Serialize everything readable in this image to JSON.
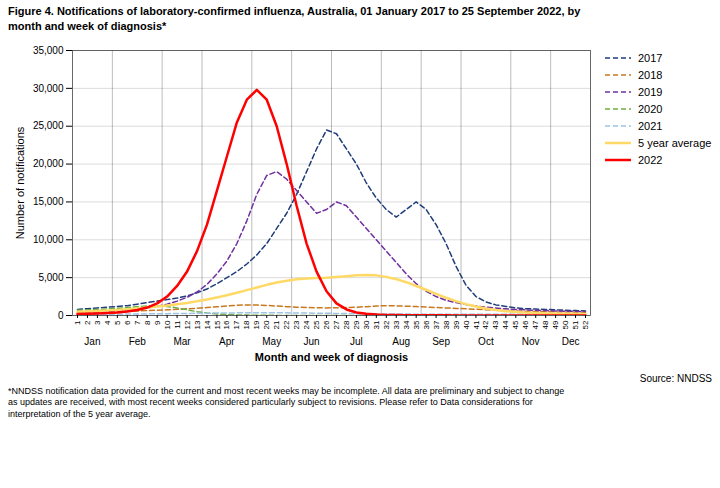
{
  "chart_data": {
    "type": "line",
    "title": "Figure 4. Notifications of laboratory-confirmed influenza, Australia, 01 January 2017 to 25 September 2022, by\nmonth and week of diagnosis*",
    "xlabel": "Month and week of diagnosis",
    "ylabel": "Number of notifications",
    "source": "Source: NNDSS",
    "footnote": "*NNDSS notification data provided for the current and most recent weeks may be incomplete. All data are preliminary and subject to change\nas updates are received, with most recent weeks considered particularly subject to revisions. Please refer to Data considerations for\ninterpretation of the 5 year average.",
    "months": [
      "Jan",
      "Feb",
      "Mar",
      "Apr",
      "May",
      "Jun",
      "Jul",
      "Aug",
      "Sep",
      "Oct",
      "Nov",
      "Dec"
    ],
    "month_week_boundaries": [
      0,
      4,
      9,
      13,
      18,
      22,
      26,
      31,
      35,
      39,
      44,
      48,
      52
    ],
    "x": [
      1,
      2,
      3,
      4,
      5,
      6,
      7,
      8,
      9,
      10,
      11,
      12,
      13,
      14,
      15,
      16,
      17,
      18,
      19,
      20,
      21,
      22,
      23,
      24,
      25,
      26,
      27,
      28,
      29,
      30,
      31,
      32,
      33,
      34,
      35,
      36,
      37,
      38,
      39,
      40,
      41,
      42,
      43,
      44,
      45,
      46,
      47,
      48,
      49,
      50,
      51,
      52
    ],
    "xlim": [
      0.5,
      52.5
    ],
    "xticks": [
      1,
      2,
      3,
      4,
      5,
      6,
      7,
      8,
      9,
      10,
      11,
      12,
      13,
      14,
      15,
      16,
      17,
      18,
      19,
      20,
      21,
      22,
      23,
      24,
      25,
      26,
      27,
      28,
      29,
      30,
      31,
      32,
      33,
      34,
      35,
      36,
      37,
      38,
      39,
      40,
      41,
      42,
      43,
      44,
      45,
      46,
      47,
      48,
      49,
      50,
      51,
      52
    ],
    "ylim": [
      0,
      35000
    ],
    "yticks": [
      0,
      {
        "value": 5000,
        "label": "5,000"
      },
      {
        "value": 10000,
        "label": "10,000"
      },
      {
        "value": 15000,
        "label": "15,000"
      },
      {
        "value": 20000,
        "label": "20,000"
      },
      {
        "value": 25000,
        "label": "25,000"
      },
      {
        "value": 30000,
        "label": "30,000"
      },
      {
        "value": 35000,
        "label": "35,000"
      }
    ],
    "grid": true,
    "legend": "right",
    "series": [
      {
        "name": "2017",
        "color": "#1f3d7a",
        "line_style": "dashed",
        "values": [
          800,
          900,
          1000,
          1100,
          1200,
          1300,
          1500,
          1700,
          1900,
          2100,
          2300,
          2600,
          3000,
          3500,
          4200,
          5000,
          5800,
          6800,
          8000,
          9500,
          11500,
          13500,
          16000,
          19000,
          22000,
          24500,
          24000,
          22000,
          20000,
          17500,
          15500,
          14000,
          13000,
          14000,
          15000,
          14000,
          12000,
          9500,
          6500,
          4000,
          2500,
          1800,
          1400,
          1200,
          1000,
          900,
          850,
          800,
          750,
          700,
          650,
          600
        ]
      },
      {
        "name": "2018",
        "color": "#c87820",
        "line_style": "dashed",
        "values": [
          400,
          420,
          450,
          480,
          520,
          560,
          600,
          650,
          700,
          750,
          810,
          880,
          960,
          1050,
          1150,
          1250,
          1350,
          1400,
          1380,
          1330,
          1250,
          1170,
          1100,
          1050,
          1020,
          1000,
          1020,
          1050,
          1100,
          1170,
          1250,
          1300,
          1270,
          1230,
          1180,
          1120,
          1060,
          1000,
          940,
          880,
          820,
          760,
          700,
          650,
          600,
          560,
          530,
          500,
          480,
          460,
          440,
          420
        ]
      },
      {
        "name": "2019",
        "color": "#7030a0",
        "line_style": "dashed",
        "values": [
          400,
          450,
          500,
          560,
          640,
          730,
          850,
          1000,
          1200,
          1500,
          1900,
          2400,
          3100,
          4100,
          5500,
          7200,
          9500,
          12500,
          16000,
          18500,
          19000,
          18000,
          16500,
          15000,
          13500,
          14000,
          15000,
          14500,
          13000,
          11500,
          10000,
          8500,
          7000,
          5500,
          4200,
          3200,
          2500,
          2000,
          1700,
          1450,
          1250,
          1100,
          980,
          880,
          800,
          740,
          690,
          650,
          610,
          570,
          540,
          510
        ]
      },
      {
        "name": "2020",
        "color": "#70ad47",
        "line_style": "dashed",
        "values": [
          700,
          750,
          800,
          870,
          950,
          1050,
          1150,
          1250,
          1300,
          1200,
          1000,
          750,
          500,
          320,
          200,
          130,
          80,
          50,
          30,
          20,
          15,
          12,
          10,
          8,
          7,
          6,
          6,
          6,
          6,
          6,
          6,
          6,
          6,
          6,
          6,
          6,
          6,
          6,
          6,
          6,
          6,
          6,
          6,
          6,
          6,
          6,
          6,
          6,
          6,
          6,
          6,
          6
        ]
      },
      {
        "name": "2021",
        "color": "#9dc3e6",
        "line_style": "dashed",
        "values": [
          120,
          130,
          140,
          155,
          170,
          185,
          200,
          215,
          230,
          245,
          260,
          275,
          290,
          305,
          320,
          335,
          350,
          360,
          365,
          365,
          360,
          350,
          335,
          320,
          305,
          290,
          275,
          260,
          245,
          230,
          215,
          200,
          190,
          185,
          180,
          175,
          172,
          170,
          168,
          165,
          163,
          160,
          158,
          155,
          152,
          150,
          148,
          145,
          143,
          140,
          138,
          135
        ]
      },
      {
        "name": "5 year average",
        "color": "#ffd966",
        "line_style": "solid",
        "values": [
          480,
          530,
          590,
          660,
          740,
          830,
          930,
          1050,
          1180,
          1320,
          1480,
          1660,
          1870,
          2110,
          2380,
          2680,
          3000,
          3350,
          3700,
          4050,
          4350,
          4600,
          4800,
          4900,
          4950,
          5000,
          5100,
          5200,
          5300,
          5350,
          5300,
          5100,
          4800,
          4400,
          3900,
          3400,
          2850,
          2350,
          1900,
          1500,
          1180,
          920,
          720,
          570,
          460,
          380,
          320,
          280,
          250,
          230,
          215,
          205
        ]
      },
      {
        "name": "2022",
        "color": "#ff0000",
        "line_style": "solid",
        "values": [
          200,
          230,
          270,
          320,
          400,
          530,
          720,
          1050,
          1600,
          2500,
          3900,
          5800,
          8500,
          12000,
          16500,
          21000,
          25500,
          28500,
          29800,
          28500,
          25000,
          20000,
          14500,
          9500,
          5800,
          3200,
          1600,
          800,
          400,
          220,
          130,
          80,
          55,
          40,
          32,
          26,
          22,
          18,
          15,
          12,
          10,
          9,
          8,
          7,
          6,
          5,
          5,
          4,
          4,
          3,
          3,
          2
        ]
      }
    ]
  }
}
